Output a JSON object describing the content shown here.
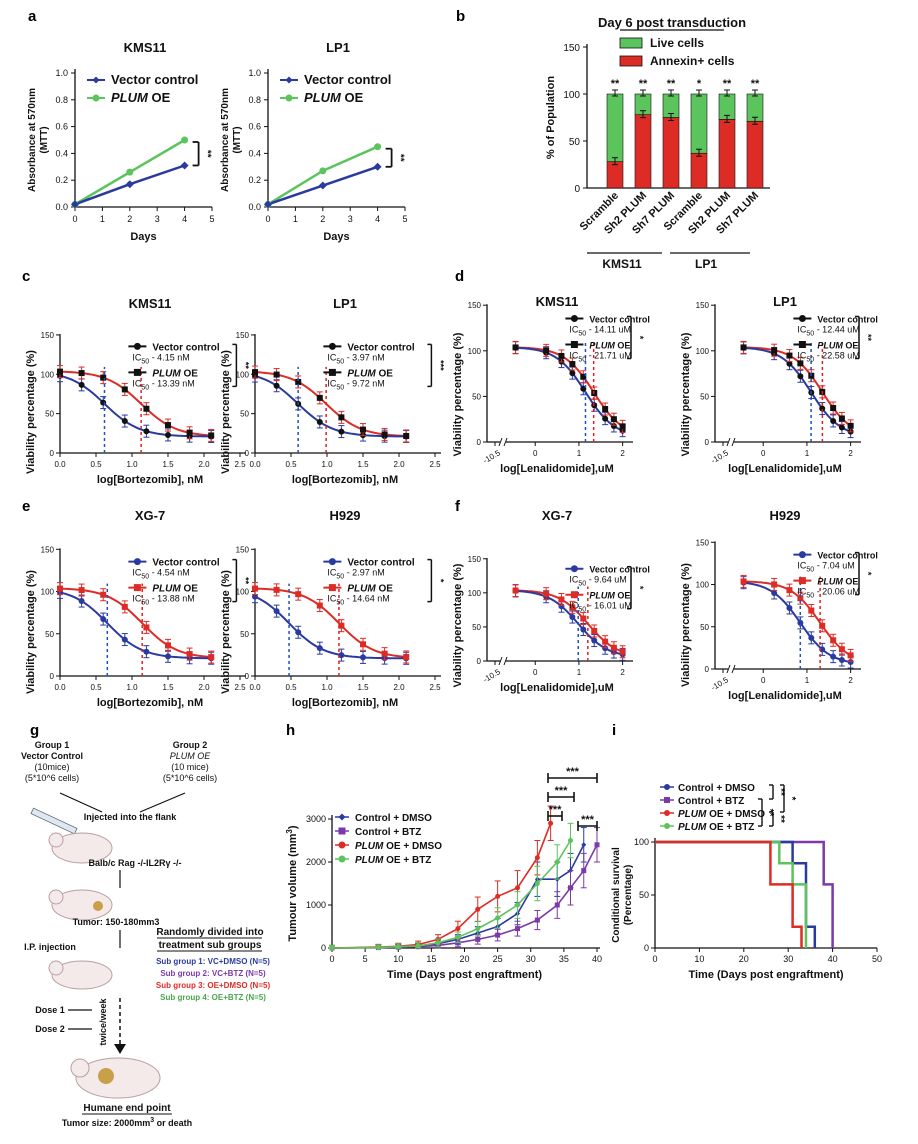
{
  "colors": {
    "blue": "#2b3a9e",
    "green": "#5cc45c",
    "red": "#dd2c26",
    "purple": "#7b3aa8",
    "black": "#111111",
    "dash_blue": "#1f4fc4",
    "dash_red": "#e02020"
  },
  "panel_labels": [
    "a",
    "b",
    "c",
    "d",
    "e",
    "f",
    "g",
    "h",
    "i"
  ],
  "panel_a": {
    "ylabel": "Absorbance at 570nm\n(MTT)",
    "xlabel": "Days",
    "legend": [
      "Vector control",
      "PLUM OE"
    ],
    "sig": "**",
    "xticks": [
      "0",
      "1",
      "2",
      "3",
      "4",
      "5"
    ],
    "yticks": [
      "0.0",
      "0.2",
      "0.4",
      "0.6",
      "0.8",
      "1.0"
    ],
    "charts": [
      {
        "title": "KMS11",
        "x": [
          0,
          2,
          4
        ],
        "vector": [
          0.02,
          0.17,
          0.31
        ],
        "plum": [
          0.02,
          0.26,
          0.5
        ]
      },
      {
        "title": "LP1",
        "x": [
          0,
          2,
          4
        ],
        "vector": [
          0.02,
          0.16,
          0.3
        ],
        "plum": [
          0.02,
          0.27,
          0.45
        ]
      }
    ]
  },
  "panel_b": {
    "title": "Day 6 post transduction",
    "legend": [
      "Live cells",
      "Annexin+ cells"
    ],
    "ylabel": "% of Population",
    "yticks": [
      "0",
      "50",
      "100",
      "150"
    ],
    "categories": [
      "Scramble",
      "Sh2 PLUM",
      "Sh7 PLUM",
      "Scramble",
      "Sh2 PLUM",
      "Sh7 PLUM"
    ],
    "groups": [
      "KMS11",
      "LP1"
    ],
    "annexin": [
      28,
      78,
      75,
      37,
      73,
      71
    ],
    "live": [
      72,
      22,
      25,
      63,
      27,
      29
    ],
    "sig": [
      "**",
      "**",
      "**",
      "*",
      "**",
      "**"
    ]
  },
  "bortezomib_xticks": [
    "0.0",
    "0.5",
    "1.0",
    "1.5",
    "2.0",
    "2.5"
  ],
  "lenalidomide_xticks": [
    "-10.5",
    "0",
    "1",
    "2"
  ],
  "viability_ylabel": "Viability percentage (%)",
  "viability_yticks": [
    "0",
    "50",
    "100",
    "150"
  ],
  "dose_charts": [
    {
      "id": "c1",
      "title": "KMS11",
      "xlabel": "log[Bortezomib], nM",
      "drug": "btz",
      "l1": "Vector control",
      "ic1": "4.15 nM",
      "l2": "PLUM OE",
      "ic2": "13.39 nM",
      "sig": "**",
      "ic50_1": 0.618,
      "ic50_2": 1.127
    },
    {
      "id": "c2",
      "title": "LP1",
      "xlabel": "log[Bortezomib], nM",
      "drug": "btz",
      "l1": "Vector control",
      "ic1": "3.97 nM",
      "l2": "PLUM OE",
      "ic2": "9.72 nM",
      "sig": "***",
      "ic50_1": 0.599,
      "ic50_2": 0.988
    },
    {
      "id": "d1",
      "title": "KMS11",
      "xlabel": "log[Lenalidomide],uM",
      "drug": "len",
      "l1": "Vector control",
      "ic1": "14.11 uM",
      "l2": "PLUM OE",
      "ic2": "21.71 uM",
      "sig": "*",
      "ic50_1": 1.15,
      "ic50_2": 1.337
    },
    {
      "id": "d2",
      "title": "LP1",
      "xlabel": "log[Lenalidomide],uM",
      "drug": "len",
      "l1": "Vector control",
      "ic1": "12.44 uM",
      "l2": "PLUM OE",
      "ic2": "22.58 uM",
      "sig": "**",
      "ic50_1": 1.095,
      "ic50_2": 1.354
    },
    {
      "id": "e1",
      "title": "XG-7",
      "xlabel": "log[Bortezomib], nM",
      "drug": "btz",
      "l1": "Vector control",
      "ic1": "4.54 nM",
      "l2": "PLUM OE",
      "ic2": "13.88 nM",
      "sig": "**",
      "ic50_1": 0.657,
      "ic50_2": 1.142
    },
    {
      "id": "e2",
      "title": "H929",
      "xlabel": "log[Bortezomib], nM",
      "drug": "btz",
      "l1": "Vector control",
      "ic1": "2.97 nM",
      "l2": "PLUM OE",
      "ic2": "14.64 nM",
      "sig": "*",
      "ic50_1": 0.473,
      "ic50_2": 1.166
    },
    {
      "id": "f1",
      "title": "XG-7",
      "xlabel": "log[Lenalidomide],uM",
      "drug": "len",
      "l1": "Vector control",
      "ic1": "9.64 uM",
      "l2": "PLUM OE",
      "ic2": "16.01 uM",
      "sig": "*",
      "ic50_1": 0.984,
      "ic50_2": 1.204
    },
    {
      "id": "f2",
      "title": "H929",
      "xlabel": "log[Lenalidomide],uM",
      "drug": "len",
      "l1": "Vector control",
      "ic1": "7.04 uM",
      "l2": "PLUM OE",
      "ic2": "20.06 uM",
      "sig": "*",
      "ic50_1": 0.848,
      "ic50_2": 1.302
    }
  ],
  "ic50_prefix": "IC",
  "ic50_sub": "50",
  "panel_g": {
    "group1": [
      "Group 1",
      "Vector Control",
      "(10mice)",
      "(5*10^6 cells)"
    ],
    "group2": [
      "Group 2",
      "PLUM OE",
      "(10 mice)",
      "(5*10^6 cells)"
    ],
    "injected": "Injected into the flank",
    "strain": "Balb/c Rag -/-IL2Rγ -/-",
    "tumor": "Tumor: 150-180mm3",
    "randomly": [
      "Randomly divided into",
      "treatment sub groups"
    ],
    "ip": "I.P. injection",
    "subgroups": [
      "Sub group 1: VC+DMSO (N=5)",
      "Sub group 2: VC+BTZ (N=5)",
      "Sub group 3: OE+DMSO (N=5)",
      "Sub group 4: OE+BTZ (N=5)"
    ],
    "dose1": "Dose 1",
    "dose2": "Dose 2",
    "twice": "twice/week",
    "endpoint": "Humane end point",
    "tumor_size": "Tumor size: 2000mm",
    "tumor_size_sup": "3",
    "tumor_size_end": " or death"
  },
  "panel_h": {
    "ylabel": "Tumour volume (mm",
    "ylabel_sup": "3",
    "ylabel_end": ")",
    "xlabel": "Time (Days post engraftment)",
    "xticks": [
      "0",
      "5",
      "10",
      "15",
      "20",
      "25",
      "30",
      "35",
      "40"
    ],
    "yticks": [
      "0",
      "1000",
      "2000",
      "3000"
    ],
    "legend": [
      "Control + DMSO",
      "Control + BTZ",
      "PLUM OE + DMSO",
      "PLUM OE + BTZ"
    ],
    "sig": [
      "***",
      "***",
      "***",
      "***"
    ],
    "series": [
      {
        "name": "Control + DMSO",
        "x": [
          0,
          7,
          10,
          13,
          16,
          19,
          22,
          25,
          28,
          31,
          34,
          36,
          38
        ],
        "y": [
          0,
          10,
          20,
          40,
          100,
          200,
          350,
          500,
          800,
          1600,
          1600,
          1800,
          2400
        ]
      },
      {
        "name": "Control + BTZ",
        "x": [
          0,
          7,
          10,
          13,
          16,
          19,
          22,
          25,
          28,
          31,
          34,
          36,
          38,
          40
        ],
        "y": [
          0,
          10,
          20,
          30,
          60,
          120,
          200,
          300,
          450,
          650,
          1000,
          1400,
          1800,
          2400
        ]
      },
      {
        "name": "PLUM OE + DMSO",
        "x": [
          0,
          7,
          10,
          13,
          16,
          19,
          22,
          25,
          28,
          31,
          33
        ],
        "y": [
          0,
          20,
          40,
          80,
          200,
          450,
          900,
          1200,
          1400,
          2100,
          2900
        ]
      },
      {
        "name": "PLUM OE + BTZ",
        "x": [
          0,
          7,
          10,
          13,
          16,
          19,
          22,
          25,
          28,
          31,
          34,
          36
        ],
        "y": [
          0,
          10,
          30,
          50,
          120,
          250,
          450,
          700,
          1000,
          1500,
          2000,
          2500
        ]
      }
    ]
  },
  "panel_i": {
    "ylabel": "Conditional survival\n(Percentage)",
    "xlabel": "Time (Days post engraftment)",
    "xticks": [
      "0",
      "10",
      "20",
      "30",
      "40",
      "50"
    ],
    "yticks": [
      "0",
      "50",
      "100"
    ],
    "legend": [
      "Control + DMSO",
      "Control + BTZ",
      "PLUM OE + DMSO",
      "PLUM OE + BTZ"
    ],
    "sig": [
      "**",
      "*",
      "**",
      "**"
    ],
    "series": [
      {
        "name": "Control + DMSO",
        "x": [
          0,
          31,
          31,
          34,
          34,
          36,
          36
        ],
        "y": [
          100,
          100,
          80,
          80,
          20,
          20,
          0
        ]
      },
      {
        "name": "Control + BTZ",
        "x": [
          0,
          38,
          38,
          40,
          40
        ],
        "y": [
          100,
          100,
          60,
          60,
          0
        ]
      },
      {
        "name": "PLUM OE + DMSO",
        "x": [
          0,
          26,
          26,
          31,
          31,
          33,
          33
        ],
        "y": [
          100,
          100,
          60,
          60,
          20,
          20,
          0
        ]
      },
      {
        "name": "PLUM OE + BTZ",
        "x": [
          0,
          28,
          28,
          31,
          31,
          34,
          34
        ],
        "y": [
          100,
          100,
          80,
          80,
          60,
          60,
          0
        ]
      }
    ]
  }
}
